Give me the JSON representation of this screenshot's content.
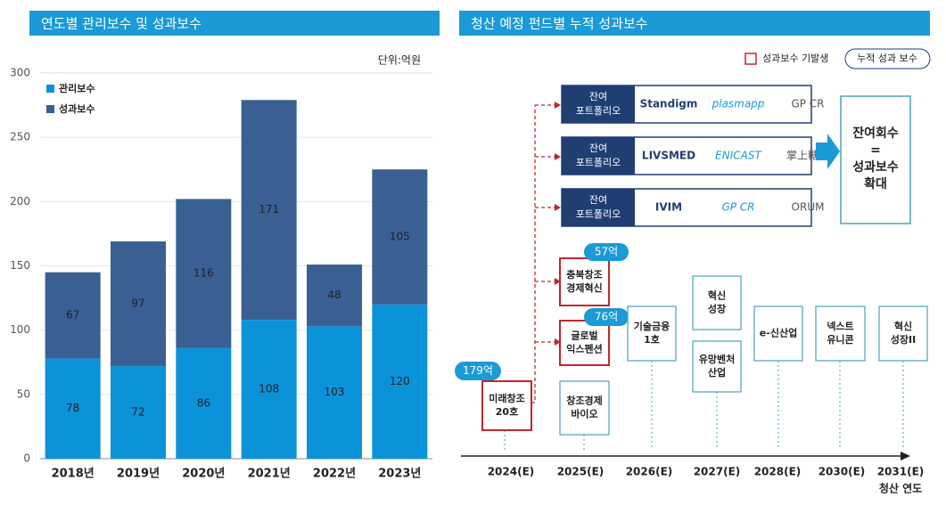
{
  "chart_data": {
    "type": "bar",
    "stacked": true,
    "title": "연도별 관리보수 및 성과보수",
    "unit": "단위:억원",
    "categories": [
      "2018년",
      "2019년",
      "2020년",
      "2021년",
      "2022년",
      "2023년"
    ],
    "series": [
      {
        "name": "관리보수",
        "color": "#0a93d8",
        "values": [
          78,
          72,
          86,
          108,
          103,
          120
        ]
      },
      {
        "name": "성과보수",
        "color": "#3a5f93",
        "values": [
          67,
          97,
          116,
          171,
          48,
          105
        ]
      }
    ],
    "ylim": [
      0,
      300
    ],
    "yticks": [
      0,
      50,
      100,
      150,
      200,
      250,
      300
    ],
    "grid": true
  },
  "diagram": {
    "title": "청산 예정 펀드별 누적 성과보수",
    "legend": {
      "incurred": "성과보수 기발생",
      "cumulative": "누적 성과 보수"
    },
    "portfolios": [
      {
        "label": [
          "잔여",
          "포트폴리오"
        ],
        "logos": [
          "Standigm",
          "plasmapp",
          "GP CR"
        ]
      },
      {
        "label": [
          "잔여",
          "포트폴리오"
        ],
        "logos": [
          "LIVSMED",
          "ENICAST",
          "掌上糖医"
        ]
      },
      {
        "label": [
          "잔여",
          "포트폴리오"
        ],
        "logos": [
          "IVIM",
          "GP CR",
          "ORUM"
        ]
      }
    ],
    "result": [
      "잔여회수",
      "=",
      "성과보수",
      "확대"
    ],
    "timeline": [
      "2024(E)",
      "2025(E)",
      "2026(E)",
      "2027(E)",
      "2028(E)",
      "2030(E)",
      "2031(E)"
    ],
    "timeline_note": "청산 연도",
    "funds": [
      {
        "name": [
          "미래창조",
          "20호"
        ],
        "fee": "179억"
      },
      {
        "name": [
          "충북창조",
          "경제혁신"
        ],
        "fee": "57억"
      },
      {
        "name": [
          "글로벌",
          "익스펜션"
        ],
        "fee": "76억"
      },
      {
        "name": [
          "창조경제",
          "바이오"
        ]
      },
      {
        "name": [
          "기술금융",
          "1호"
        ]
      },
      {
        "name": [
          "혁신",
          "성장"
        ]
      },
      {
        "name": [
          "유망벤처",
          "산업"
        ]
      },
      {
        "name": [
          "e-신산업"
        ]
      },
      {
        "name": [
          "넥스트",
          "유니콘"
        ]
      },
      {
        "name": [
          "혁신",
          "성장II"
        ]
      }
    ]
  }
}
